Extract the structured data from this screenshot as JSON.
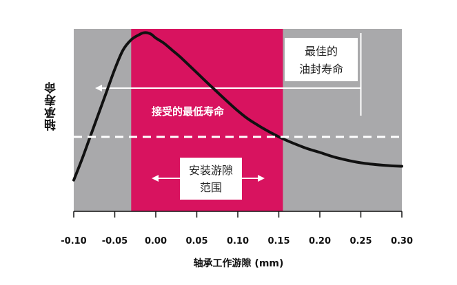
{
  "chart_data": {
    "type": "line",
    "xlabel": "轴承工作游隙 (mm)",
    "ylabel": "轴承寿命",
    "xlim": [
      -0.1,
      0.3
    ],
    "x_ticks": [
      "-0.10",
      "-0.05",
      "0.00",
      "0.05",
      "0.10",
      "0.15",
      "0.20",
      "0.25",
      "0.30"
    ],
    "x_tick_values": [
      -0.1,
      -0.05,
      0.0,
      0.05,
      0.1,
      0.15,
      0.2,
      0.25,
      0.3
    ],
    "grid": false,
    "series": [
      {
        "x": [
          -0.1,
          -0.09,
          -0.08,
          -0.07,
          -0.06,
          -0.05,
          -0.04,
          -0.03,
          -0.02,
          -0.015,
          -0.01,
          -0.005,
          0.0,
          0.01,
          0.02,
          0.03,
          0.05,
          0.07,
          0.1,
          0.12,
          0.15,
          0.18,
          0.2,
          0.22,
          0.25,
          0.28,
          0.3
        ],
        "y": [
          0.18,
          0.3,
          0.43,
          0.56,
          0.69,
          0.82,
          0.93,
          0.99,
          1.02,
          1.03,
          1.03,
          1.02,
          1.0,
          0.97,
          0.93,
          0.89,
          0.8,
          0.71,
          0.58,
          0.51,
          0.43,
          0.37,
          0.34,
          0.31,
          0.28,
          0.265,
          0.26
        ]
      }
    ],
    "annotations": {
      "installation_band": [
        -0.03,
        0.155
      ],
      "optimal_seal_life_x": 0.25,
      "minimum_acceptable_life_y": 0.43
    }
  },
  "labels": {
    "seal_life_line1": "最佳的",
    "seal_life_line2": "油封寿命",
    "min_life": "接受的最低寿命",
    "install_line1": "安装游隙",
    "install_line2": "范围"
  },
  "colors": {
    "plot_background": "#a9a9ab",
    "band": "#d8135f",
    "curve": "#111111",
    "guide": "#ffffff"
  }
}
